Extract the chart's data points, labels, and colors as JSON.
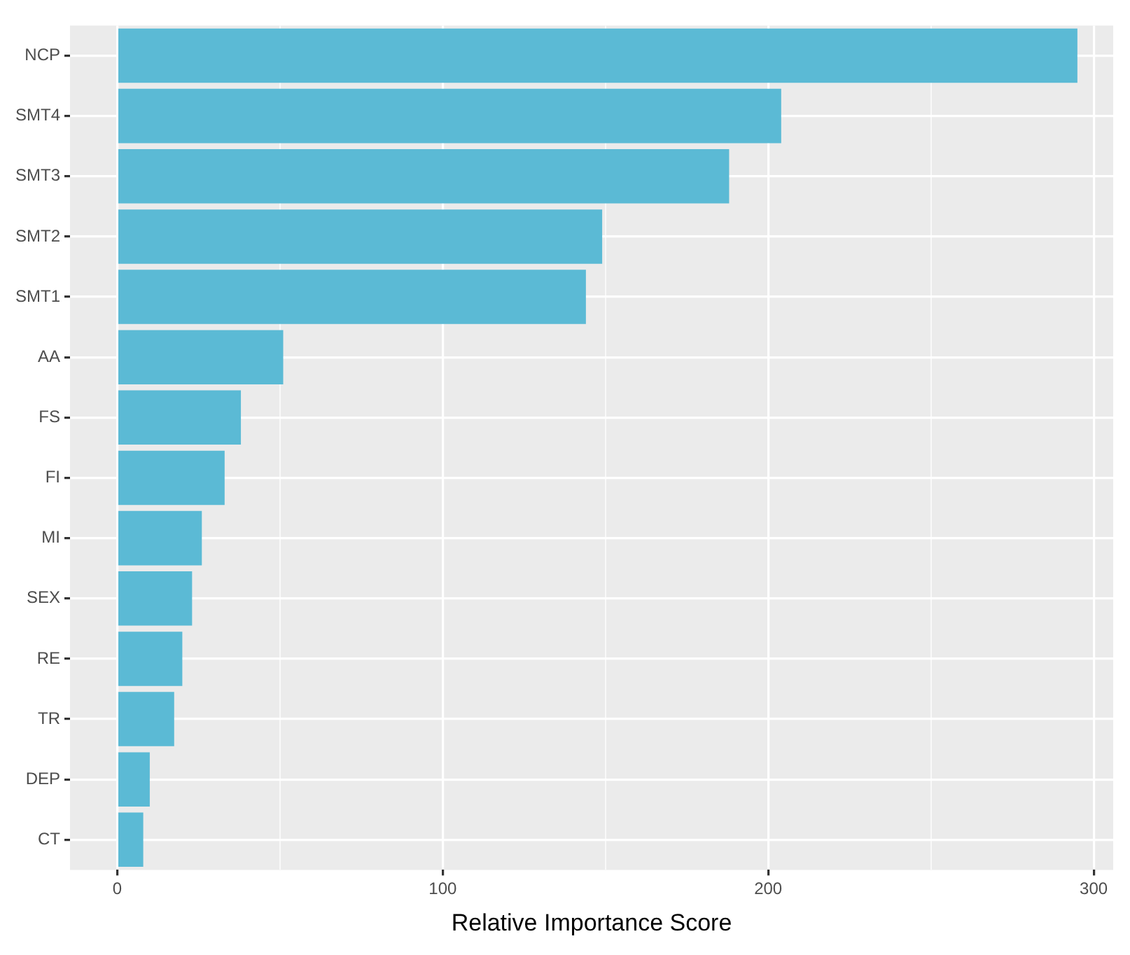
{
  "chart_data": {
    "type": "bar",
    "orientation": "horizontal",
    "xlabel": "Relative Importance Score",
    "categories": [
      "NCP",
      "SMT4",
      "SMT3",
      "SMT2",
      "SMT1",
      "AA",
      "FS",
      "FI",
      "MI",
      "SEX",
      "RE",
      "TR",
      "DEP",
      "CT"
    ],
    "values": [
      295,
      204,
      188,
      149,
      144,
      51,
      38,
      33,
      26,
      23,
      20,
      17.5,
      10,
      8
    ],
    "color": "#5bbad5",
    "xlim": [
      -14.5,
      306
    ],
    "xticks": [
      0,
      {
        "value": 50,
        "label": null
      },
      100,
      {
        "value": 150,
        "label": null
      },
      200,
      {
        "value": 250,
        "label": null
      },
      300
    ],
    "grid": true
  }
}
